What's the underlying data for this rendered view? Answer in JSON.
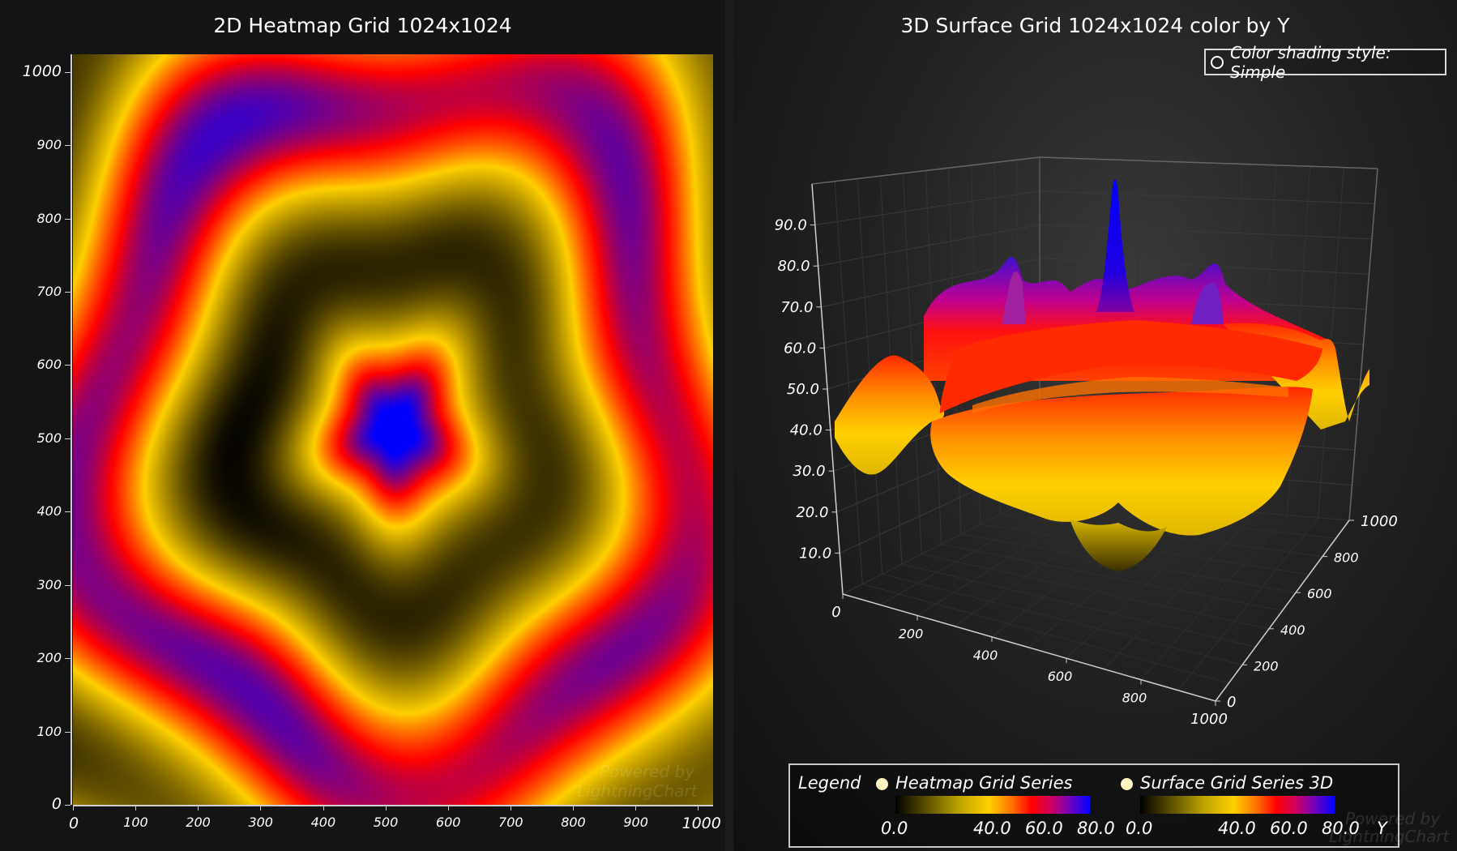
{
  "chart_data": [
    {
      "type": "heatmap",
      "title": "2D Heatmap Grid 1024x1024",
      "x_range": [
        0,
        1024
      ],
      "y_range": [
        0,
        1024
      ],
      "x_ticks": [
        "0",
        "100",
        "200",
        "300",
        "400",
        "500",
        "600",
        "700",
        "800",
        "900",
        "1000"
      ],
      "y_ticks": [
        "0",
        "100",
        "200",
        "300",
        "400",
        "500",
        "600",
        "700",
        "800",
        "900",
        "1000"
      ],
      "center": [
        512,
        512
      ],
      "color_scale": [
        {
          "value": 0.0,
          "color": "#000000"
        },
        {
          "value": 40.0,
          "color": "#ffd000"
        },
        {
          "value": 60.0,
          "color": "#ff0000"
        },
        {
          "value": 80.0,
          "color": "#0000ff"
        }
      ]
    },
    {
      "type": "surface3d",
      "title": "3D Surface Grid 1024x1024 color by Y",
      "x_ticks": [
        "0",
        "200",
        "400",
        "600",
        "800",
        "1000"
      ],
      "y_ticks": [
        "10.0",
        "20.0",
        "30.0",
        "40.0",
        "50.0",
        "60.0",
        "70.0",
        "80.0",
        "90.0"
      ],
      "z_ticks": [
        "0",
        "200",
        "400",
        "600",
        "800",
        "1000"
      ],
      "y_axis_title": "Y",
      "y_range": [
        0,
        100
      ]
    }
  ],
  "controls": {
    "shading_button": "Color shading style: Simple"
  },
  "legend": {
    "title": "Legend",
    "entries": [
      {
        "label": "Heatmap Grid Series",
        "ticks": [
          "0.0",
          "40.0",
          "60.0",
          "80.0"
        ]
      },
      {
        "label": "Surface Grid Series 3D",
        "ticks": [
          "0.0",
          "40.0",
          "60.0",
          "80.0"
        ]
      }
    ]
  },
  "watermarks": {
    "line1": "Powered by",
    "line2": "LightningChart"
  }
}
